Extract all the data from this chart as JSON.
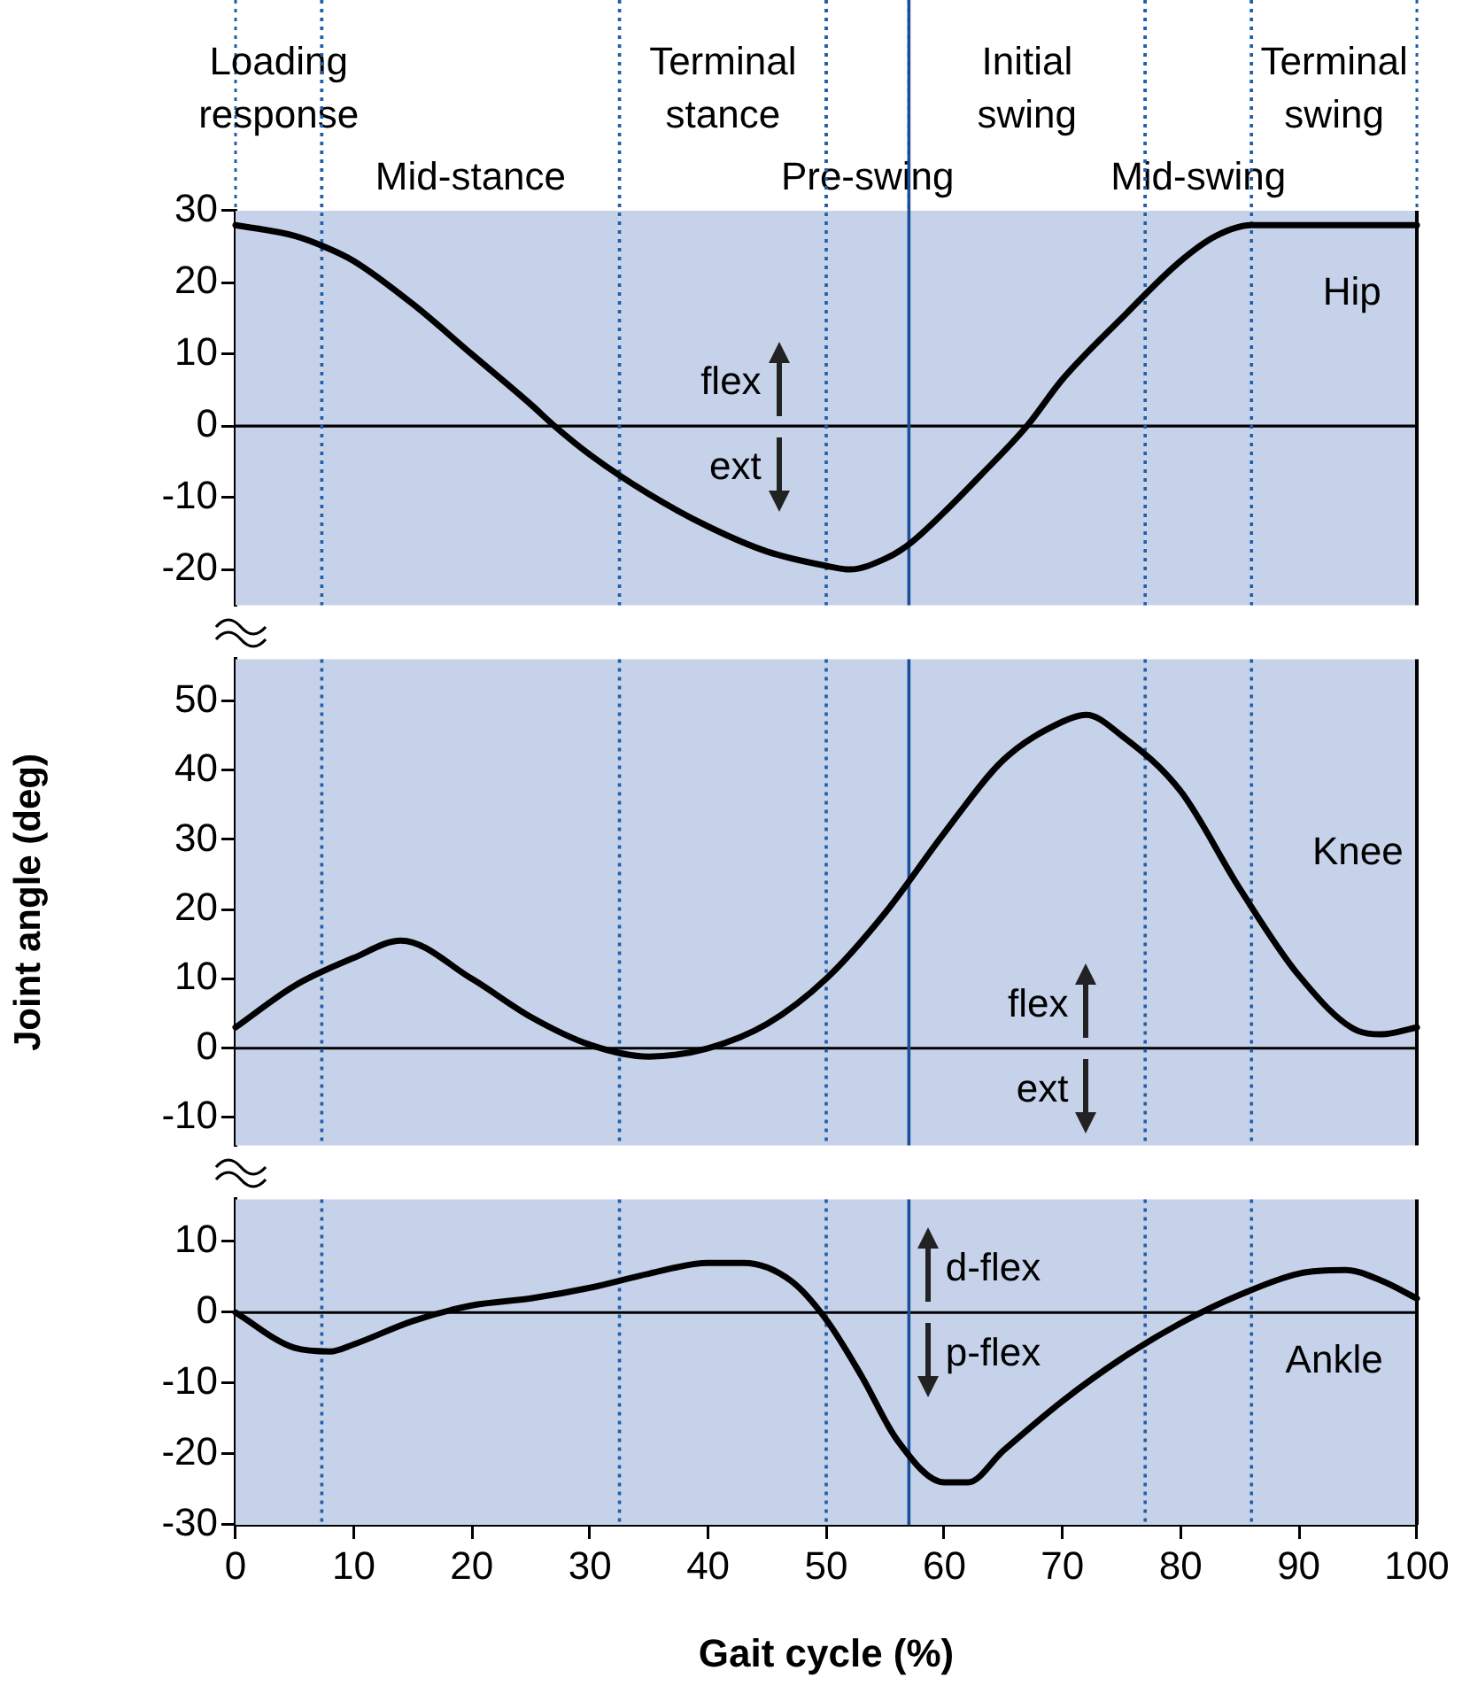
{
  "chart_data": [
    {
      "type": "line",
      "x": [
        0,
        5,
        7.5,
        10,
        15,
        20,
        25,
        27,
        30,
        35,
        40,
        45,
        50,
        52,
        55,
        57,
        60,
        63,
        67,
        70,
        75,
        80,
        83,
        86,
        90,
        95,
        100
      ],
      "series": [
        {
          "name": "Hip",
          "color": "#000000",
          "values": [
            28,
            26.5,
            25,
            23,
            17,
            10,
            3,
            0,
            -4,
            -9.5,
            -14,
            -17.5,
            -19.5,
            -20,
            -18.5,
            -16.5,
            -12,
            -7,
            0,
            6.5,
            15,
            23,
            26.5,
            28,
            28,
            28,
            28
          ]
        }
      ],
      "xlim": [
        0,
        100
      ],
      "xticks": [
        0,
        10,
        20,
        30,
        40,
        50,
        60,
        70,
        80,
        90,
        100
      ],
      "ylim": [
        -25,
        30
      ],
      "yticks": [
        -20,
        -10,
        0,
        10,
        20,
        30
      ],
      "tick_labels": "y",
      "bands": [
        {
          "axis": "x",
          "from": 0,
          "to": 7.3,
          "label": "Loading response",
          "color": "#c6d2ea"
        },
        {
          "axis": "x",
          "from": 7.3,
          "to": 32.5,
          "label": "Mid-stance",
          "color": "#c6d2ea"
        },
        {
          "axis": "x",
          "from": 32.5,
          "to": 50,
          "label": "Terminal stance",
          "color": "#c6d2ea"
        },
        {
          "axis": "x",
          "from": 50,
          "to": 57,
          "label": "Pre-swing",
          "color": "#c6d2ea"
        },
        {
          "axis": "x",
          "from": 57,
          "to": 77,
          "label": "Initial swing",
          "color": "#c6d2ea"
        },
        {
          "axis": "x",
          "from": 77,
          "to": 86,
          "label": "Mid-swing",
          "color": "#c6d2ea"
        },
        {
          "axis": "x",
          "from": 86,
          "to": 100,
          "label": "Terminal swing",
          "color": "#c6d2ea"
        }
      ],
      "ref_lines": [
        {
          "axis": "y",
          "value": 0,
          "color": "#000000",
          "line_style": "solid"
        },
        {
          "axis": "x",
          "value": 7.3,
          "color": "#1f5fa8",
          "line_style": "dotted"
        },
        {
          "axis": "x",
          "value": 32.5,
          "color": "#1f5fa8",
          "line_style": "dotted"
        },
        {
          "axis": "x",
          "value": 50,
          "color": "#1f5fa8",
          "line_style": "dotted"
        },
        {
          "axis": "x",
          "value": 57,
          "color": "#1a4f9a",
          "line_style": "solid"
        },
        {
          "axis": "x",
          "value": 77,
          "color": "#1f5fa8",
          "line_style": "dotted"
        },
        {
          "axis": "x",
          "value": 86,
          "color": "#1f5fa8",
          "line_style": "dotted"
        }
      ],
      "annotations": [
        "flex",
        "ext"
      ]
    },
    {
      "type": "line",
      "x": [
        0,
        5,
        10,
        14,
        20,
        25,
        30,
        35,
        40,
        45,
        50,
        55,
        60,
        65,
        70,
        72,
        75,
        80,
        85,
        90,
        95,
        97,
        100
      ],
      "series": [
        {
          "name": "Knee",
          "color": "#000000",
          "values": [
            3,
            9,
            13,
            15.5,
            10,
            4.5,
            0.5,
            -1.2,
            0,
            3.5,
            10,
            19.5,
            31,
            41.5,
            47,
            48,
            45,
            37,
            23,
            10.5,
            2.5,
            2,
            3
          ]
        }
      ],
      "xlim": [
        0,
        100
      ],
      "xticks": [
        0,
        10,
        20,
        30,
        40,
        50,
        60,
        70,
        80,
        90,
        100
      ],
      "ylim": [
        -14,
        56
      ],
      "yticks": [
        -10,
        0,
        10,
        20,
        30,
        40,
        50
      ],
      "tick_labels": "y",
      "ylabel": "Joint angle (deg)",
      "bands": [
        {
          "axis": "x",
          "from": 0,
          "to": 100,
          "color": "#c6d2ea"
        }
      ],
      "ref_lines": [
        {
          "axis": "y",
          "value": 0,
          "color": "#000000",
          "line_style": "solid"
        },
        {
          "axis": "x",
          "value": 7.3,
          "color": "#1f5fa8",
          "line_style": "dotted"
        },
        {
          "axis": "x",
          "value": 32.5,
          "color": "#1f5fa8",
          "line_style": "dotted"
        },
        {
          "axis": "x",
          "value": 50,
          "color": "#1f5fa8",
          "line_style": "dotted"
        },
        {
          "axis": "x",
          "value": 57,
          "color": "#1a4f9a",
          "line_style": "solid"
        },
        {
          "axis": "x",
          "value": 77,
          "color": "#1f5fa8",
          "line_style": "dotted"
        },
        {
          "axis": "x",
          "value": 86,
          "color": "#1f5fa8",
          "line_style": "dotted"
        }
      ],
      "annotations": [
        "flex",
        "ext"
      ]
    },
    {
      "type": "line",
      "x": [
        0,
        5,
        8,
        10,
        15,
        20,
        25,
        30,
        35,
        40,
        43,
        47,
        50,
        53,
        56,
        60,
        62,
        65,
        70,
        75,
        80,
        85,
        90,
        94,
        97,
        100
      ],
      "series": [
        {
          "name": "Ankle",
          "color": "#000000",
          "values": [
            0,
            -5,
            -5.5,
            -4.5,
            -1.2,
            1,
            2,
            3.5,
            5.5,
            7,
            7,
            4.5,
            -1,
            -9,
            -18,
            -24,
            -24,
            -19.5,
            -12.5,
            -6.5,
            -1.5,
            2.5,
            5.5,
            6,
            4.5,
            2
          ]
        }
      ],
      "xlim": [
        0,
        100
      ],
      "xticks": [
        0,
        10,
        20,
        30,
        40,
        50,
        60,
        70,
        80,
        90,
        100
      ],
      "ylim": [
        -30,
        16
      ],
      "yticks": [
        -30,
        -20,
        -10,
        0,
        10
      ],
      "xlabel": "Gait cycle (%)",
      "bands": [
        {
          "axis": "x",
          "from": 0,
          "to": 100,
          "color": "#c6d2ea"
        }
      ],
      "ref_lines": [
        {
          "axis": "y",
          "value": 0,
          "color": "#000000",
          "line_style": "solid"
        },
        {
          "axis": "x",
          "value": 7.3,
          "color": "#1f5fa8",
          "line_style": "dotted"
        },
        {
          "axis": "x",
          "value": 32.5,
          "color": "#1f5fa8",
          "line_style": "dotted"
        },
        {
          "axis": "x",
          "value": 50,
          "color": "#1f5fa8",
          "line_style": "dotted"
        },
        {
          "axis": "x",
          "value": 57,
          "color": "#1a4f9a",
          "line_style": "solid"
        },
        {
          "axis": "x",
          "value": 77,
          "color": "#1f5fa8",
          "line_style": "dotted"
        },
        {
          "axis": "x",
          "value": 86,
          "color": "#1f5fa8",
          "line_style": "dotted"
        }
      ],
      "annotations": [
        "d-flex",
        "p-flex"
      ]
    }
  ]
}
